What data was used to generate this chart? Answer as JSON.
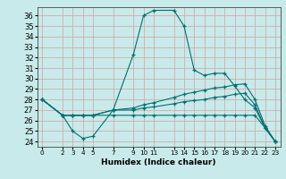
{
  "xlabel": "Humidex (Indice chaleur)",
  "xlim": [
    -0.5,
    23.5
  ],
  "ylim": [
    23.5,
    36.8
  ],
  "yticks": [
    24,
    25,
    26,
    27,
    28,
    29,
    30,
    31,
    32,
    33,
    34,
    35,
    36
  ],
  "xtick_labels": [
    "0",
    "2",
    "3",
    "4",
    "5",
    "7",
    "9",
    "10",
    "11",
    "13",
    "14",
    "15",
    "16",
    "17",
    "18",
    "19",
    "20",
    "21",
    "22",
    "23"
  ],
  "xtick_pos": [
    0,
    2,
    3,
    4,
    5,
    7,
    9,
    10,
    11,
    13,
    14,
    15,
    16,
    17,
    18,
    19,
    20,
    21,
    22,
    23
  ],
  "bg_color": "#c8eaea",
  "grid_color": "#d4a0a0",
  "line_color": "#007070",
  "lines": [
    {
      "x": [
        0,
        2,
        3,
        4,
        5,
        7,
        9,
        10,
        11,
        13,
        14,
        15,
        16,
        17,
        18,
        19,
        20,
        21,
        22,
        23
      ],
      "y": [
        28,
        26.5,
        25.0,
        24.3,
        24.5,
        27.0,
        32.3,
        36.0,
        36.5,
        36.5,
        35.0,
        30.8,
        30.3,
        30.5,
        30.5,
        29.3,
        28.0,
        27.2,
        25.3,
        24.0
      ]
    },
    {
      "x": [
        0,
        2,
        3,
        4,
        5,
        7,
        9,
        10,
        11,
        13,
        14,
        15,
        16,
        17,
        18,
        19,
        20,
        21,
        22,
        23
      ],
      "y": [
        28,
        26.5,
        26.5,
        26.5,
        26.5,
        27.0,
        27.2,
        27.5,
        27.7,
        28.2,
        28.5,
        28.7,
        28.9,
        29.1,
        29.2,
        29.4,
        29.5,
        28.0,
        25.5,
        24.0
      ]
    },
    {
      "x": [
        0,
        2,
        3,
        4,
        5,
        7,
        9,
        10,
        11,
        13,
        14,
        15,
        16,
        17,
        18,
        19,
        20,
        21,
        22,
        23
      ],
      "y": [
        28,
        26.5,
        26.5,
        26.5,
        26.5,
        27.0,
        27.0,
        27.2,
        27.3,
        27.6,
        27.8,
        27.9,
        28.0,
        28.2,
        28.3,
        28.5,
        28.6,
        27.5,
        25.3,
        24.0
      ]
    },
    {
      "x": [
        0,
        2,
        3,
        4,
        5,
        7,
        9,
        10,
        11,
        13,
        14,
        15,
        16,
        17,
        18,
        19,
        20,
        21,
        22,
        23
      ],
      "y": [
        28,
        26.5,
        26.5,
        26.5,
        26.5,
        26.5,
        26.5,
        26.5,
        26.5,
        26.5,
        26.5,
        26.5,
        26.5,
        26.5,
        26.5,
        26.5,
        26.5,
        26.5,
        25.3,
        24.0
      ]
    }
  ]
}
